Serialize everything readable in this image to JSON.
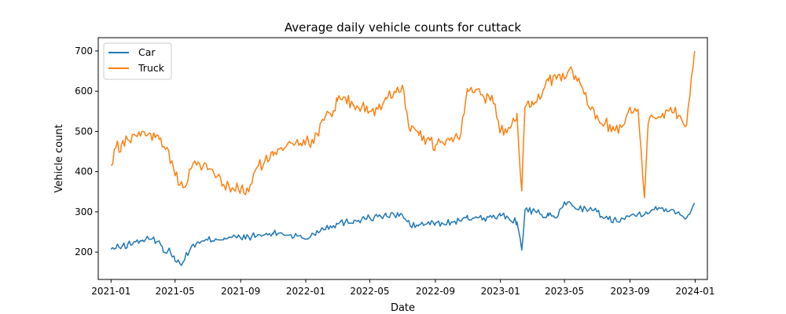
{
  "chart_data": {
    "type": "line",
    "title": "Average daily vehicle counts for cuttack",
    "xlabel": "Date",
    "ylabel": "Vehicle count",
    "x_range": [
      "2020-12-08",
      "2024-01-24"
    ],
    "ylim": [
      132,
      733
    ],
    "x_ticks": [
      "2021-01",
      "2021-05",
      "2021-09",
      "2022-01",
      "2022-05",
      "2022-09",
      "2023-01",
      "2023-05",
      "2023-09",
      "2024-01"
    ],
    "y_ticks": [
      200,
      300,
      400,
      500,
      600,
      700
    ],
    "grid": false,
    "legend_position": "top-left",
    "series": [
      {
        "name": "Car",
        "color": "#1f77b4",
        "x": [
          "2021-01-01",
          "2021-01-16",
          "2021-02-01",
          "2021-02-16",
          "2021-03-01",
          "2021-03-16",
          "2021-04-01",
          "2021-04-09",
          "2021-04-20",
          "2021-05-01",
          "2021-05-16",
          "2021-06-01",
          "2021-06-16",
          "2021-07-01",
          "2021-07-16",
          "2021-08-01",
          "2021-08-16",
          "2021-09-01",
          "2021-09-16",
          "2021-10-01",
          "2021-10-16",
          "2021-11-01",
          "2021-11-16",
          "2021-12-01",
          "2021-12-16",
          "2022-01-01",
          "2022-01-16",
          "2022-02-01",
          "2022-02-16",
          "2022-03-01",
          "2022-03-16",
          "2022-04-01",
          "2022-04-16",
          "2022-05-01",
          "2022-05-16",
          "2022-06-01",
          "2022-06-16",
          "2022-07-01",
          "2022-07-16",
          "2022-08-01",
          "2022-08-16",
          "2022-09-01",
          "2022-09-16",
          "2022-10-01",
          "2022-10-16",
          "2022-11-01",
          "2022-11-16",
          "2022-12-01",
          "2022-12-16",
          "2023-01-01",
          "2023-01-16",
          "2023-02-01",
          "2023-02-10",
          "2023-02-16",
          "2023-03-01",
          "2023-03-16",
          "2023-04-01",
          "2023-04-16",
          "2023-05-01",
          "2023-05-16",
          "2023-06-01",
          "2023-06-16",
          "2023-07-01",
          "2023-07-16",
          "2023-08-01",
          "2023-08-16",
          "2023-09-01",
          "2023-09-16",
          "2023-10-01",
          "2023-10-16",
          "2023-11-01",
          "2023-11-16",
          "2023-12-01",
          "2023-12-16",
          "2023-12-31"
        ],
        "values": [
          207,
          212,
          218,
          225,
          230,
          232,
          228,
          200,
          210,
          178,
          175,
          215,
          222,
          230,
          233,
          235,
          237,
          235,
          238,
          240,
          243,
          245,
          248,
          242,
          240,
          233,
          245,
          260,
          265,
          270,
          275,
          278,
          282,
          285,
          288,
          290,
          292,
          293,
          265,
          268,
          270,
          272,
          270,
          275,
          278,
          283,
          288,
          285,
          286,
          290,
          285,
          275,
          205,
          305,
          300,
          295,
          290,
          285,
          325,
          315,
          310,
          305,
          300,
          285,
          280,
          285,
          290,
          295,
          300,
          305,
          310,
          305,
          300,
          285,
          322
        ]
      },
      {
        "name": "Truck",
        "color": "#ff7f0e",
        "x": [
          "2021-01-01",
          "2021-01-10",
          "2021-01-20",
          "2021-02-01",
          "2021-02-16",
          "2021-03-01",
          "2021-03-16",
          "2021-04-01",
          "2021-04-16",
          "2021-05-01",
          "2021-05-16",
          "2021-06-01",
          "2021-06-16",
          "2021-07-01",
          "2021-07-16",
          "2021-08-01",
          "2021-08-16",
          "2021-09-01",
          "2021-09-16",
          "2021-10-01",
          "2021-10-16",
          "2021-11-01",
          "2021-11-16",
          "2021-12-01",
          "2021-12-16",
          "2022-01-01",
          "2022-01-16",
          "2022-02-01",
          "2022-02-16",
          "2022-03-01",
          "2022-03-16",
          "2022-04-01",
          "2022-04-16",
          "2022-05-01",
          "2022-05-16",
          "2022-06-01",
          "2022-06-16",
          "2022-07-01",
          "2022-07-16",
          "2022-08-01",
          "2022-08-16",
          "2022-09-01",
          "2022-09-16",
          "2022-10-01",
          "2022-10-16",
          "2022-11-01",
          "2022-11-16",
          "2022-12-01",
          "2022-12-16",
          "2023-01-01",
          "2023-01-16",
          "2023-02-01",
          "2023-02-10",
          "2023-02-16",
          "2023-03-01",
          "2023-03-16",
          "2023-04-01",
          "2023-04-16",
          "2023-05-01",
          "2023-05-16",
          "2023-06-01",
          "2023-06-16",
          "2023-07-01",
          "2023-07-16",
          "2023-08-01",
          "2023-08-16",
          "2023-09-01",
          "2023-09-16",
          "2023-09-28",
          "2023-10-05",
          "2023-10-16",
          "2023-11-01",
          "2023-11-16",
          "2023-12-01",
          "2023-12-16",
          "2023-12-31"
        ],
        "values": [
          415,
          460,
          465,
          480,
          490,
          500,
          495,
          480,
          460,
          390,
          360,
          410,
          420,
          405,
          385,
          365,
          360,
          355,
          350,
          410,
          425,
          440,
          460,
          475,
          480,
          475,
          470,
          530,
          545,
          575,
          585,
          565,
          560,
          550,
          555,
          580,
          600,
          615,
          500,
          490,
          480,
          465,
          470,
          485,
          480,
          600,
          605,
          585,
          590,
          500,
          510,
          545,
          352,
          560,
          575,
          580,
          625,
          630,
          630,
          650,
          615,
          560,
          540,
          520,
          505,
          510,
          560,
          555,
          335,
          520,
          535,
          545,
          560,
          540,
          515,
          700
        ]
      }
    ]
  }
}
